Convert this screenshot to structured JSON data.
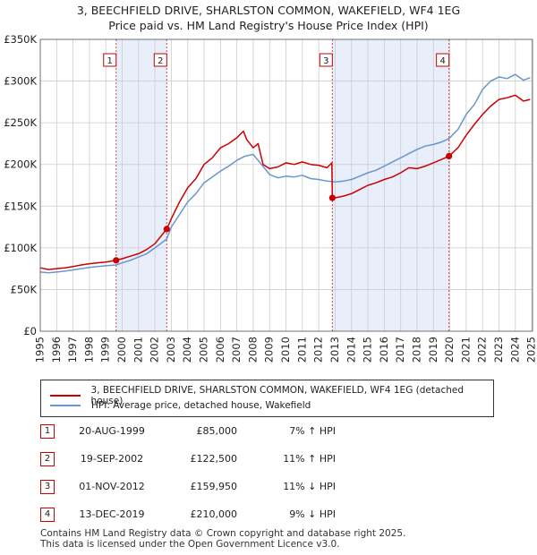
{
  "title_line1": "3, BEECHFIELD DRIVE, SHARLSTON COMMON, WAKEFIELD, WF4 1EG",
  "title_line2": "Price paid vs. HM Land Registry's House Price Index (HPI)",
  "colors": {
    "property": "#cc0000",
    "hpi": "#6a96cc",
    "shade": "#e8eefa",
    "grid": "#cccccc"
  },
  "chart_data": {
    "type": "line",
    "title": "Price paid vs. HM Land Registry's House Price Index (HPI)",
    "xlabel": "",
    "ylabel": "",
    "xlim": [
      1995.0,
      2025.05
    ],
    "ylim": [
      0,
      350000
    ],
    "y_ticks": [
      {
        "value": 0,
        "label": "£0"
      },
      {
        "value": 50000,
        "label": "£50K"
      },
      {
        "value": 100000,
        "label": "£100K"
      },
      {
        "value": 150000,
        "label": "£150K"
      },
      {
        "value": 200000,
        "label": "£200K"
      },
      {
        "value": 250000,
        "label": "£250K"
      },
      {
        "value": 300000,
        "label": "£300K"
      },
      {
        "value": 350000,
        "label": "£350K"
      }
    ],
    "x_ticks": [
      1995,
      1996,
      1997,
      1998,
      1999,
      2000,
      2001,
      2002,
      2003,
      2004,
      2005,
      2006,
      2007,
      2008,
      2009,
      2010,
      2011,
      2012,
      2013,
      2014,
      2015,
      2016,
      2017,
      2018,
      2019,
      2020,
      2021,
      2022,
      2023,
      2024,
      2025
    ],
    "grid": true,
    "shaded_periods": [
      [
        1999.63,
        2002.72
      ],
      [
        2012.83,
        2019.95
      ]
    ],
    "series": [
      {
        "name": "3, BEECHFIELD DRIVE, SHARLSTON COMMON, WAKEFIELD, WF4 1EG (detached house)",
        "color": "#cc0000",
        "x": [
          1995.0,
          1995.5,
          1996.0,
          1996.5,
          1997.0,
          1997.5,
          1998.0,
          1998.5,
          1999.0,
          1999.63,
          2000.0,
          2000.5,
          2001.0,
          2001.5,
          2002.0,
          2002.72,
          2003.0,
          2003.5,
          2004.0,
          2004.5,
          2005.0,
          2005.5,
          2006.0,
          2006.5,
          2007.0,
          2007.4,
          2007.6,
          2008.0,
          2008.3,
          2008.6,
          2009.0,
          2009.5,
          2010.0,
          2010.5,
          2011.0,
          2011.5,
          2012.0,
          2012.5,
          2012.8,
          2012.83,
          2013.0,
          2013.5,
          2014.0,
          2014.5,
          2015.0,
          2015.5,
          2016.0,
          2016.5,
          2017.0,
          2017.5,
          2018.0,
          2018.5,
          2019.0,
          2019.5,
          2019.95,
          2020.5,
          2021.0,
          2021.5,
          2022.0,
          2022.5,
          2023.0,
          2023.5,
          2024.0,
          2024.5,
          2024.9
        ],
        "values": [
          76000,
          74000,
          75000,
          76000,
          77500,
          79500,
          81000,
          82000,
          83000,
          85000,
          87000,
          90000,
          93000,
          98000,
          105000,
          122500,
          135000,
          155000,
          172000,
          183000,
          200000,
          208000,
          220000,
          225000,
          232000,
          240000,
          230000,
          220000,
          225000,
          200000,
          195000,
          197000,
          202000,
          200000,
          203000,
          200000,
          199000,
          196000,
          202000,
          159950,
          160000,
          162000,
          165000,
          170000,
          175000,
          178000,
          182000,
          185000,
          190000,
          196000,
          195000,
          198000,
          202000,
          206000,
          210000,
          220000,
          235000,
          248000,
          260000,
          270000,
          278000,
          280000,
          283000,
          276000,
          278000
        ]
      },
      {
        "name": "HPI: Average price, detached house, Wakefield",
        "color": "#6a96cc",
        "x": [
          1995.0,
          1995.5,
          1996.0,
          1996.5,
          1997.0,
          1997.5,
          1998.0,
          1998.5,
          1999.0,
          1999.63,
          2000.0,
          2000.5,
          2001.0,
          2001.5,
          2002.0,
          2002.72,
          2003.0,
          2003.5,
          2004.0,
          2004.5,
          2005.0,
          2005.5,
          2006.0,
          2006.5,
          2007.0,
          2007.5,
          2008.0,
          2008.5,
          2009.0,
          2009.5,
          2010.0,
          2010.5,
          2011.0,
          2011.5,
          2012.0,
          2012.5,
          2013.0,
          2013.5,
          2014.0,
          2014.5,
          2015.0,
          2015.5,
          2016.0,
          2016.5,
          2017.0,
          2017.5,
          2018.0,
          2018.5,
          2019.0,
          2019.5,
          2019.95,
          2020.5,
          2021.0,
          2021.5,
          2022.0,
          2022.5,
          2023.0,
          2023.5,
          2024.0,
          2024.5,
          2024.9
        ],
        "values": [
          71000,
          70000,
          71000,
          72000,
          73500,
          75000,
          76500,
          77500,
          78500,
          79500,
          82000,
          85000,
          89000,
          93000,
          100000,
          110500,
          125000,
          140000,
          155000,
          165000,
          178000,
          185000,
          192000,
          198000,
          205000,
          210000,
          212000,
          200000,
          188000,
          184000,
          186000,
          185000,
          187000,
          183000,
          182000,
          180000,
          179000,
          180000,
          182000,
          186000,
          190000,
          193000,
          198000,
          203000,
          208000,
          213000,
          218000,
          222000,
          224000,
          227000,
          231000,
          242000,
          260000,
          272000,
          290000,
          300000,
          305000,
          303000,
          308000,
          301000,
          304000
        ]
      }
    ],
    "sale_markers": [
      {
        "label": "1",
        "x": 1999.63,
        "value": 85000
      },
      {
        "label": "2",
        "x": 2002.72,
        "value": 122500
      },
      {
        "label": "3",
        "x": 2012.83,
        "value": 159950
      },
      {
        "label": "4",
        "x": 2019.95,
        "value": 210000
      }
    ]
  },
  "legend": {
    "property_label": "3, BEECHFIELD DRIVE, SHARLSTON COMMON, WAKEFIELD, WF4 1EG (detached house)",
    "hpi_label": "HPI: Average price, detached house, Wakefield"
  },
  "sales": [
    {
      "num": "1",
      "date": "20-AUG-1999",
      "price": "£85,000",
      "hpi": "7% ↑ HPI"
    },
    {
      "num": "2",
      "date": "19-SEP-2002",
      "price": "£122,500",
      "hpi": "11% ↑ HPI"
    },
    {
      "num": "3",
      "date": "01-NOV-2012",
      "price": "£159,950",
      "hpi": "11% ↓ HPI"
    },
    {
      "num": "4",
      "date": "13-DEC-2019",
      "price": "£210,000",
      "hpi": "9% ↓ HPI"
    }
  ],
  "footer_line1": "Contains HM Land Registry data © Crown copyright and database right 2025.",
  "footer_line2": "This data is licensed under the Open Government Licence v3.0."
}
